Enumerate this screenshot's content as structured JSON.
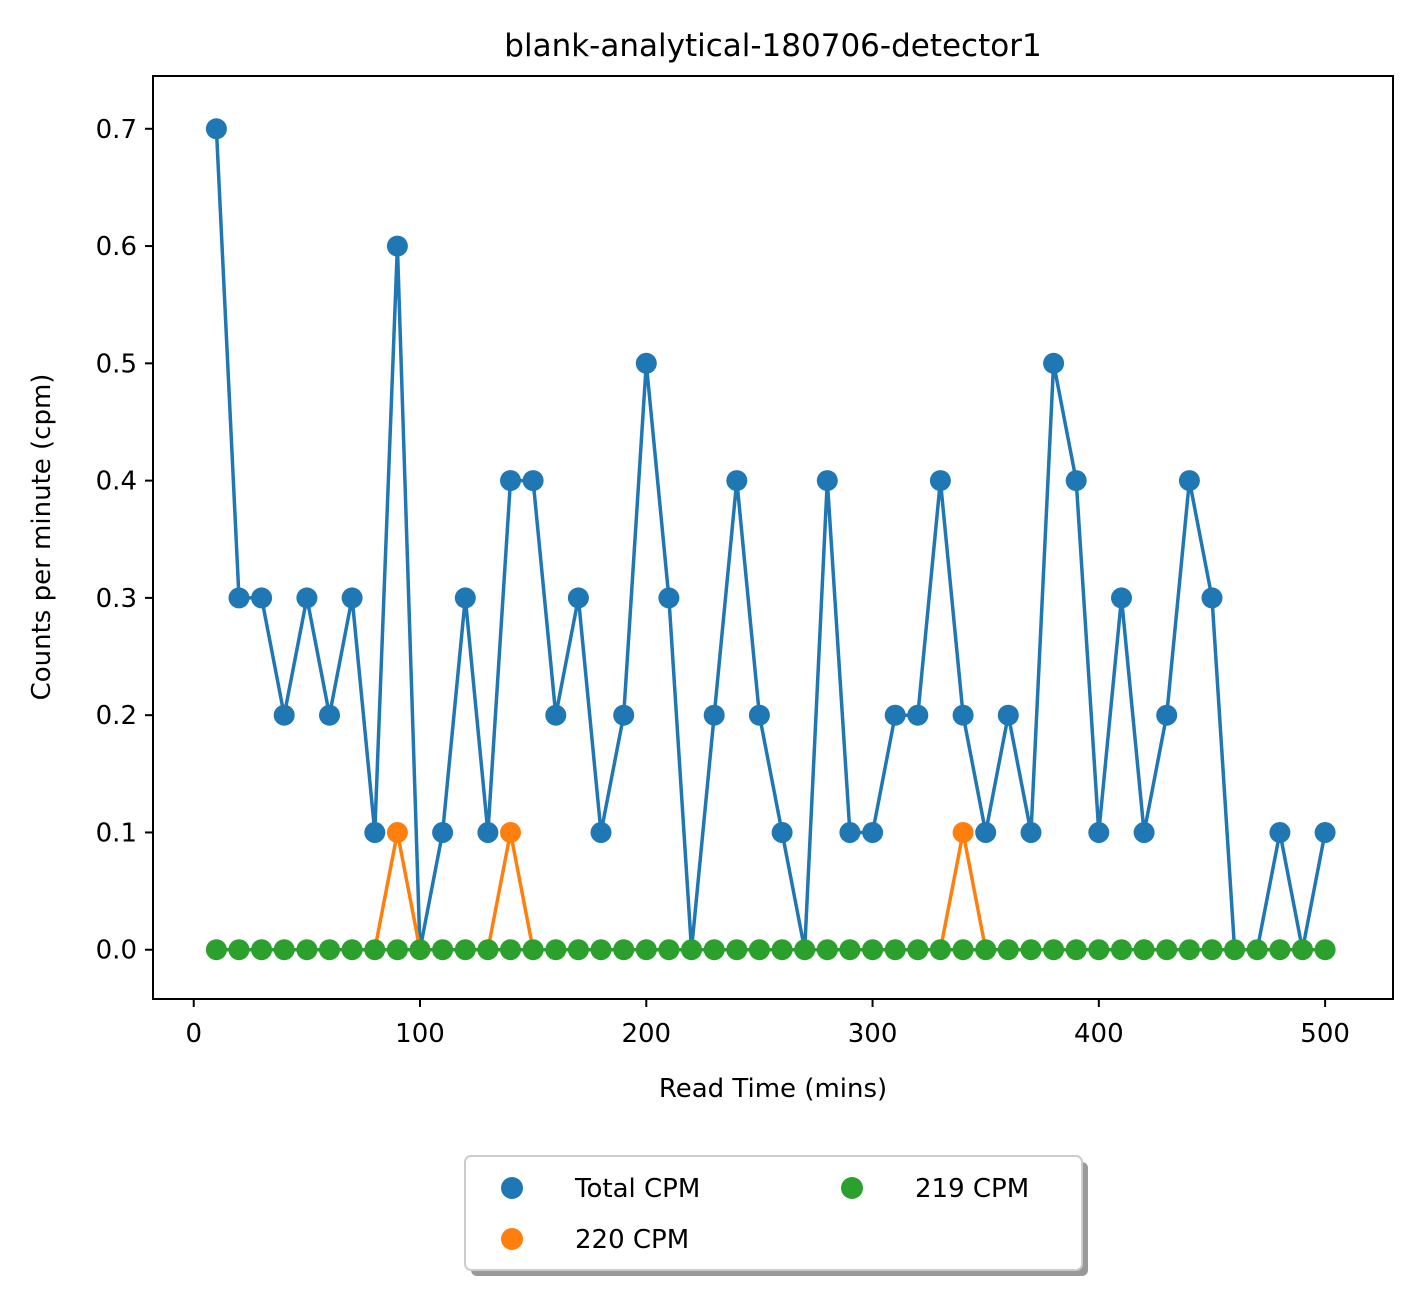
{
  "chart_data": {
    "type": "line",
    "title": "blank-analytical-180706-detector1",
    "xlabel": "Read Time (mins)",
    "ylabel": "Counts per minute (cpm)",
    "xlim": [
      -18,
      530
    ],
    "ylim": [
      -0.042,
      0.745
    ],
    "xticks": [
      0,
      100,
      200,
      300,
      400,
      500
    ],
    "xtick_labels": [
      "0",
      "100",
      "200",
      "300",
      "400",
      "500"
    ],
    "yticks": [
      0.0,
      0.1,
      0.2,
      0.3,
      0.4,
      0.5,
      0.6,
      0.7
    ],
    "ytick_labels": [
      "0.0",
      "0.1",
      "0.2",
      "0.3",
      "0.4",
      "0.5",
      "0.6",
      "0.7"
    ],
    "grid": false,
    "legend_position": "below-center",
    "x": [
      10,
      20,
      30,
      40,
      50,
      60,
      70,
      80,
      90,
      100,
      110,
      120,
      130,
      140,
      150,
      160,
      170,
      180,
      190,
      200,
      210,
      220,
      230,
      240,
      250,
      260,
      270,
      280,
      290,
      300,
      310,
      320,
      330,
      340,
      350,
      360,
      370,
      380,
      390,
      400,
      410,
      420,
      430,
      440,
      450,
      460,
      470,
      480,
      490,
      500
    ],
    "series": [
      {
        "name": "Total CPM",
        "color": "#1f77b4",
        "values": [
          0.7,
          0.3,
          0.3,
          0.2,
          0.3,
          0.2,
          0.3,
          0.1,
          0.6,
          0.0,
          0.1,
          0.3,
          0.1,
          0.4,
          0.4,
          0.2,
          0.3,
          0.1,
          0.2,
          0.5,
          0.3,
          0.0,
          0.2,
          0.4,
          0.2,
          0.1,
          0.0,
          0.4,
          0.1,
          0.1,
          0.2,
          0.2,
          0.4,
          0.2,
          0.1,
          0.2,
          0.1,
          0.5,
          0.4,
          0.1,
          0.3,
          0.1,
          0.2,
          0.4,
          0.3,
          0.0,
          0.0,
          0.1,
          0.0,
          0.1
        ],
        "marker_hidden_at_zero": true
      },
      {
        "name": "220 CPM",
        "color": "#ff7f0e",
        "values": [
          0,
          0,
          0,
          0,
          0,
          0,
          0,
          0,
          0.1,
          0,
          0,
          0,
          0,
          0.1,
          0,
          0,
          0,
          0,
          0,
          0,
          0,
          0,
          0,
          0,
          0,
          0,
          0,
          0,
          0,
          0,
          0,
          0,
          0,
          0.1,
          0,
          0,
          0,
          0,
          0,
          0,
          0,
          0,
          0,
          0,
          0,
          0,
          0,
          0,
          0,
          0
        ],
        "marker_hidden_at_zero": true
      },
      {
        "name": "219 CPM",
        "color": "#2ca02c",
        "values": [
          0,
          0,
          0,
          0,
          0,
          0,
          0,
          0,
          0,
          0,
          0,
          0,
          0,
          0,
          0,
          0,
          0,
          0,
          0,
          0,
          0,
          0,
          0,
          0,
          0,
          0,
          0,
          0,
          0,
          0,
          0,
          0,
          0,
          0,
          0,
          0,
          0,
          0,
          0,
          0,
          0,
          0,
          0,
          0,
          0,
          0,
          0,
          0,
          0,
          0
        ],
        "marker_hidden_at_zero": false
      }
    ]
  }
}
